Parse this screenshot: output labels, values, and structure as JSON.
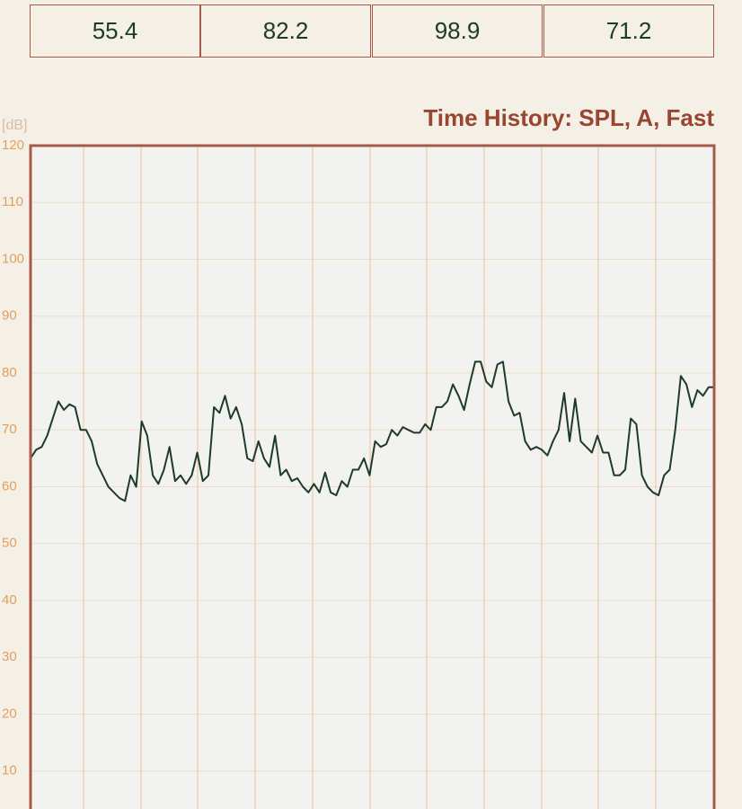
{
  "readings": [
    "55.4",
    "82.2",
    "98.9",
    "71.2"
  ],
  "chart_data": {
    "type": "line",
    "title": "Time History: SPL, A, Fast",
    "y_label": "[dB]",
    "ylim": [
      0,
      120
    ],
    "yticks": [
      10,
      20,
      30,
      40,
      50,
      60,
      70,
      80,
      90,
      100,
      110,
      120
    ],
    "grid": true,
    "color": "#1e3a2a",
    "values": [
      65,
      66.5,
      67,
      69,
      72,
      75,
      73.5,
      74.5,
      74,
      70,
      70,
      68,
      64,
      62,
      60,
      59,
      58,
      57.5,
      62,
      60,
      71.5,
      69,
      62,
      60.5,
      63,
      67,
      61,
      62,
      60.5,
      62,
      66,
      61,
      62,
      74,
      73,
      76,
      72,
      74,
      71,
      65,
      64.5,
      68,
      65,
      63.5,
      69,
      62,
      63,
      61,
      61.5,
      60,
      59,
      60.5,
      59,
      62.5,
      59,
      58.5,
      61,
      60,
      63,
      63,
      65,
      62,
      68,
      67,
      67.5,
      70,
      69,
      70.5,
      70,
      69.5,
      69.5,
      71,
      70,
      74,
      74,
      75,
      78,
      76,
      73.5,
      78,
      82,
      82,
      78.5,
      77.5,
      81.5,
      82,
      75,
      72.5,
      73,
      68,
      66.5,
      67,
      66.5,
      65.5,
      68,
      70,
      76.5,
      68,
      75.5,
      68,
      67,
      66,
      69,
      66,
      66,
      62,
      62,
      63,
      72,
      71,
      62,
      60,
      59,
      58.5,
      62,
      63,
      70,
      79.5,
      78,
      74,
      77,
      76,
      77.5,
      77.5
    ]
  }
}
